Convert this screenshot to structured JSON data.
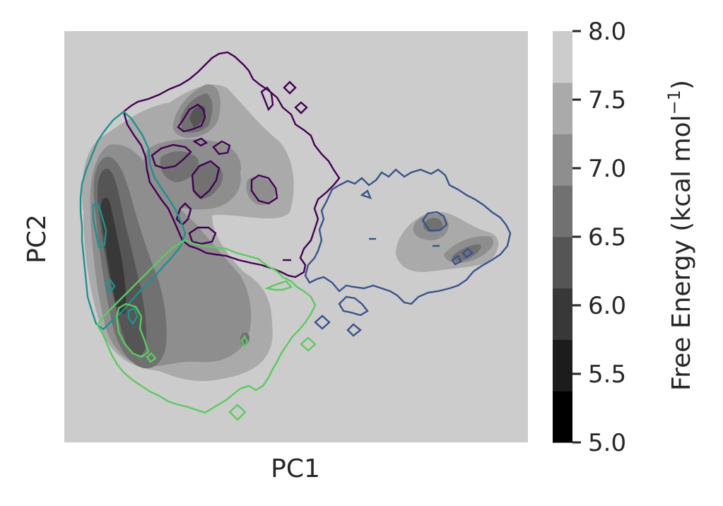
{
  "chart_data": {
    "type": "heatmap",
    "title": "",
    "xlabel": "PC1",
    "ylabel": "PC2",
    "xticks_visible": false,
    "yticks_visible": false,
    "background_color": "#cccccc",
    "colorbar": {
      "label": "Free Energy (kcal mol",
      "label_superscript": "−1",
      "label_suffix": ")",
      "range": [
        5.0,
        8.0
      ],
      "ticks": [
        "5.0",
        "5.5",
        "6.0",
        "6.5",
        "7.0",
        "7.5",
        "8.0"
      ],
      "levels": [
        {
          "from": 5.0,
          "to": 5.375,
          "color": "#000000"
        },
        {
          "from": 5.375,
          "to": 5.75,
          "color": "#1c1c1c"
        },
        {
          "from": 5.75,
          "to": 6.125,
          "color": "#383838"
        },
        {
          "from": 6.125,
          "to": 6.5,
          "color": "#555555"
        },
        {
          "from": 6.5,
          "to": 6.875,
          "color": "#717171"
        },
        {
          "from": 6.875,
          "to": 7.25,
          "color": "#8e8e8e"
        },
        {
          "from": 7.25,
          "to": 7.625,
          "color": "#aaaaaa"
        },
        {
          "from": 7.625,
          "to": 8.0,
          "color": "#cccccc"
        }
      ]
    },
    "contour_clusters": [
      {
        "color": "#440154"
      },
      {
        "color": "#3b528b"
      },
      {
        "color": "#21918c"
      },
      {
        "color": "#5ec962"
      }
    ]
  }
}
